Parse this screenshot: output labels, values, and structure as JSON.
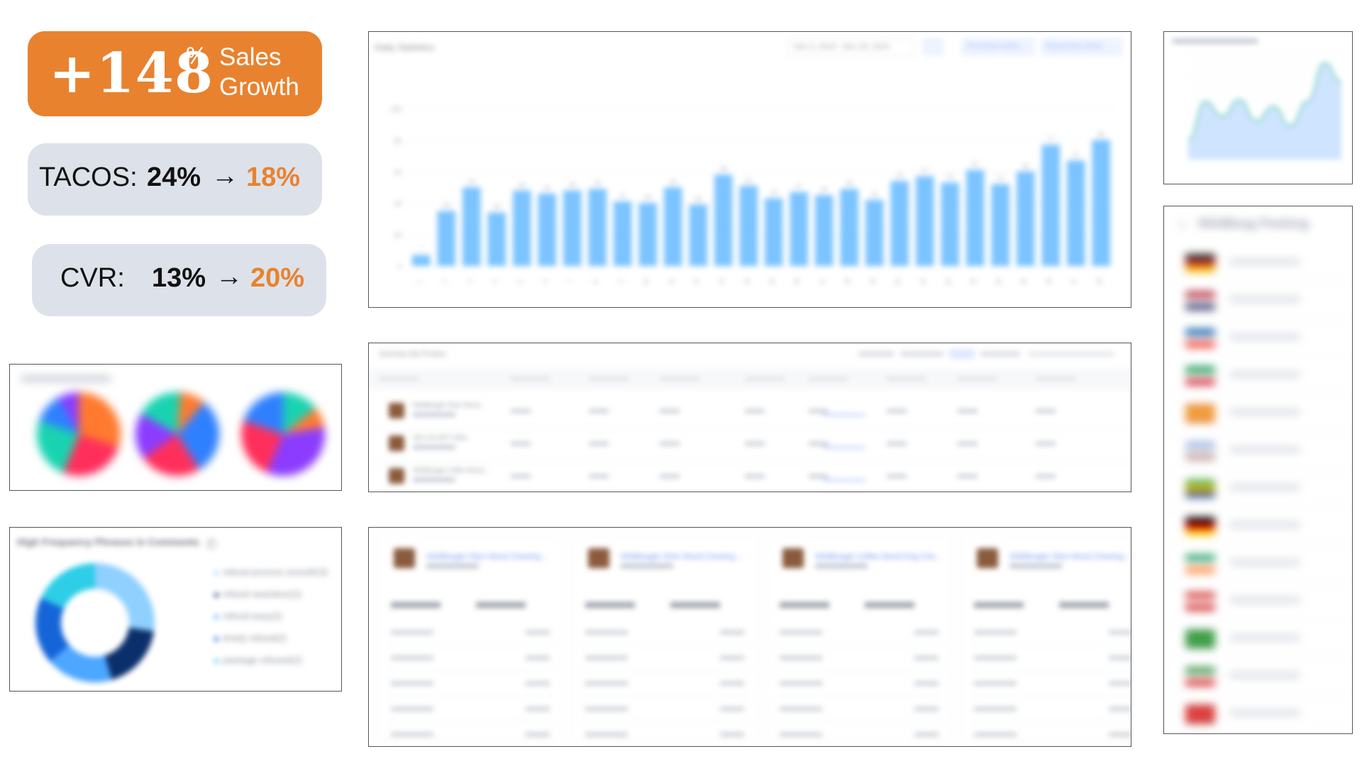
{
  "kpis": {
    "sales_growth": {
      "value": "+148",
      "unit": "%",
      "label_line1": "Sales",
      "label_line2": "Growth"
    },
    "tacos": {
      "label": "TACOS:",
      "from": "24%",
      "arrow": "→",
      "to": "18%"
    },
    "cvr": {
      "label": "CVR:",
      "from": "13%",
      "arrow": "→",
      "to": "20%"
    }
  },
  "colors": {
    "accent_orange": "#e8822f",
    "kpi_grey": "#dde2ea",
    "bar_blue": "#7cc4ff"
  },
  "daily_chart": {
    "title": "Daily Statistics",
    "date_range": "Nov 2, 2024 - Nov 29, 2024",
    "buttons": [
      "Promoted orders",
      "Requested orders"
    ]
  },
  "summary_table": {
    "title": "Summary By Product",
    "rows": [
      {
        "name": "WildBeagle Olive Wood..."
      },
      {
        "name": "SKU-36-4871 Wild..."
      },
      {
        "name": "WildBeagle Coffee Wood..."
      }
    ]
  },
  "phrases": {
    "title": "High Frequency Phrases in Comments",
    "info_icon": "info-icon",
    "items": [
      {
        "label": "refund process smooth(3)",
        "color": "#8fd0ff"
      },
      {
        "label": "refund seamless(2)",
        "color": "#0b2f6b"
      },
      {
        "label": "refund easy(2)",
        "color": "#4da6ff"
      },
      {
        "label": "timely refund(2)",
        "color": "#1565d8"
      },
      {
        "label": "package refused(2)",
        "color": "#2ecde8"
      }
    ]
  },
  "product_cards": [
    {
      "title": "WildBeagle Olive Wood Chewing ..."
    },
    {
      "title": "WildBeagle Olive Wood Chewing ..."
    },
    {
      "title": "WildBeagle Coffee Wood Dog Che..."
    },
    {
      "title": "WildBeagle Olive Wood Chewing ..."
    }
  ],
  "marketplace_panel": {
    "title": "WildBeag Peeking"
  },
  "chart_data": [
    {
      "type": "bar",
      "title": "Daily Statistics",
      "categories": [
        "1",
        "2",
        "3",
        "4",
        "5",
        "6",
        "7",
        "8",
        "9",
        "10",
        "11",
        "12",
        "13",
        "14",
        "15",
        "16",
        "17",
        "18",
        "19",
        "20",
        "21",
        "22",
        "23",
        "24",
        "25",
        "26",
        "27",
        "28"
      ],
      "values": [
        7,
        35,
        50,
        34,
        48,
        46,
        48,
        49,
        41,
        40,
        50,
        39,
        58,
        51,
        43,
        47,
        45,
        49,
        42,
        54,
        57,
        53,
        61,
        52,
        60,
        77,
        67,
        80
      ],
      "ylim": [
        0,
        100
      ],
      "grid": true
    },
    {
      "type": "pie",
      "series": [
        {
          "values": [
            30,
            26,
            24,
            12,
            8
          ]
        },
        {
          "values": [
            30,
            24,
            18,
            18,
            10
          ]
        },
        {
          "values": [
            34,
            24,
            20,
            14,
            8
          ]
        }
      ]
    },
    {
      "type": "pie",
      "title": "High Frequency Phrases in Comments",
      "categories": [
        "refund process smooth(3)",
        "refund seamless(2)",
        "refund easy(2)",
        "timely refund(2)",
        "package refused(2)"
      ],
      "values": [
        3,
        2,
        2,
        2,
        2
      ]
    },
    {
      "type": "area",
      "values": [
        20,
        60,
        45,
        62,
        40,
        55,
        35,
        60,
        100,
        80
      ],
      "ylim": [
        0,
        110
      ]
    }
  ]
}
